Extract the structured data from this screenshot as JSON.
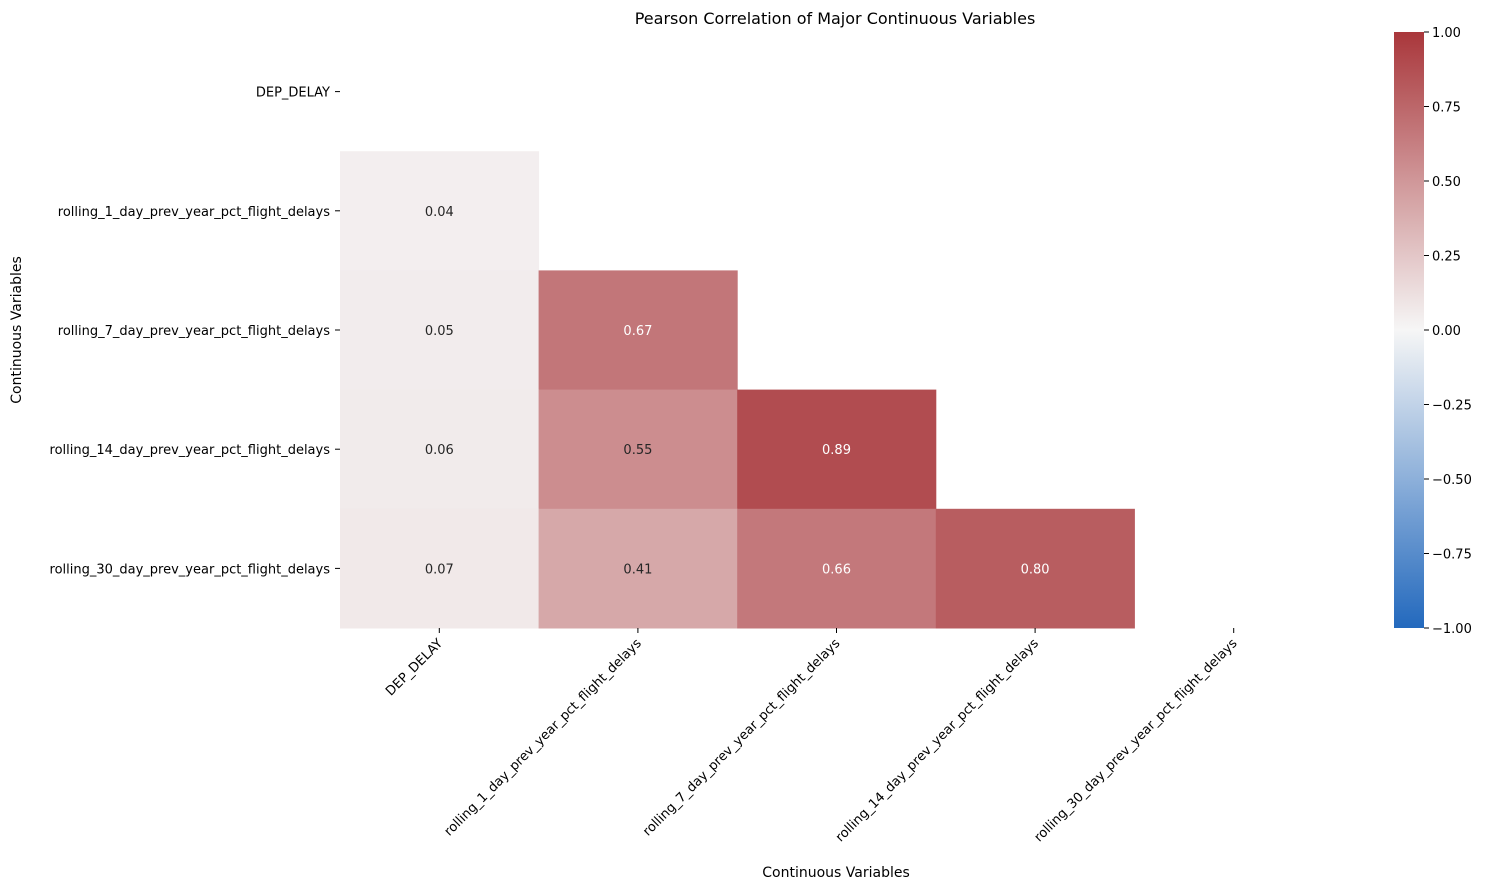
{
  "chart_data": {
    "type": "heatmap",
    "title": "Pearson Correlation of Major Continuous Variables",
    "xlabel": "Continuous Variables",
    "ylabel": "Continuous Variables",
    "variables": [
      "DEP_DELAY",
      "rolling_1_day_prev_year_pct_flight_delays",
      "rolling_7_day_prev_year_pct_flight_delays",
      "rolling_14_day_prev_year_pct_flight_delays",
      "rolling_30_day_prev_year_pct_flight_delays"
    ],
    "mask": "upper-triangle-including-diagonal",
    "matrix": [
      [
        null,
        null,
        null,
        null,
        null
      ],
      [
        0.04,
        null,
        null,
        null,
        null
      ],
      [
        0.05,
        0.67,
        null,
        null,
        null
      ],
      [
        0.06,
        0.55,
        0.89,
        null,
        null
      ],
      [
        0.07,
        0.41,
        0.66,
        0.8,
        null
      ]
    ],
    "value_format": "0.00",
    "colormap": "vlag",
    "vmin": -1.0,
    "vmax": 1.0,
    "colorbar_ticks": [
      "1.00",
      "0.75",
      "0.50",
      "0.25",
      "0.00",
      "−0.25",
      "−0.50",
      "−0.75",
      "−1.00"
    ],
    "colors": {
      "low": "#2369bd",
      "mid": "#f6f6f6",
      "high": "#a9373b"
    }
  }
}
